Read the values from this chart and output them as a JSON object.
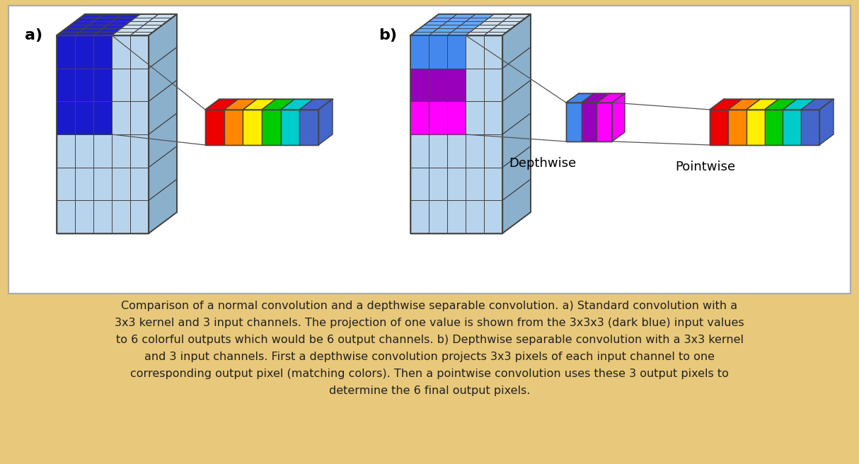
{
  "outer_bg": "#e8c87a",
  "inner_bg": "#ffffff",
  "inner_border": "#aaaaaa",
  "light_blue_face": "#b8d4ed",
  "light_blue_top": "#cce0f0",
  "light_blue_side": "#8ab0cc",
  "dark_blue_face": "#1a1acd",
  "dark_blue_top": "#2222cc",
  "dark_blue_side": "#0000aa",
  "line_color": "#444444",
  "colors_6": [
    "#ee0000",
    "#ff8800",
    "#ffee00",
    "#00cc00",
    "#00cccc",
    "#4466cc"
  ],
  "chan_colors_face": [
    "#4488ee",
    "#9900bb",
    "#ff00ff"
  ],
  "chan_colors_top": [
    "#66aaff",
    "#aa22cc",
    "#ff44ff"
  ],
  "chan_colors_side": [
    "#2255cc",
    "#770099",
    "#cc00cc"
  ],
  "label_a": "a)",
  "label_b": "b)",
  "depthwise_label": "Depthwise",
  "pointwise_label": "Pointwise",
  "caption_line1": "Comparison of a normal convolution and a depthwise separable convolution. a) Standard convolution with a",
  "caption_line2": "3x3 kernel and 3 input channels. The projection of one value is shown from the 3x3x3 (dark blue) input values",
  "caption_line3": "to 6 colorful outputs which would be 6 output channels. b) Depthwise separable convolution with a 3x3 kernel",
  "caption_line4": "and 3 input channels. First a depthwise convolution projects 3x3 pixels of each input channel to one",
  "caption_line5": "corresponding output pixel (matching colors). Then a pointwise convolution uses these 3 output pixels to",
  "caption_line6": "determine the 6 final output pixels."
}
